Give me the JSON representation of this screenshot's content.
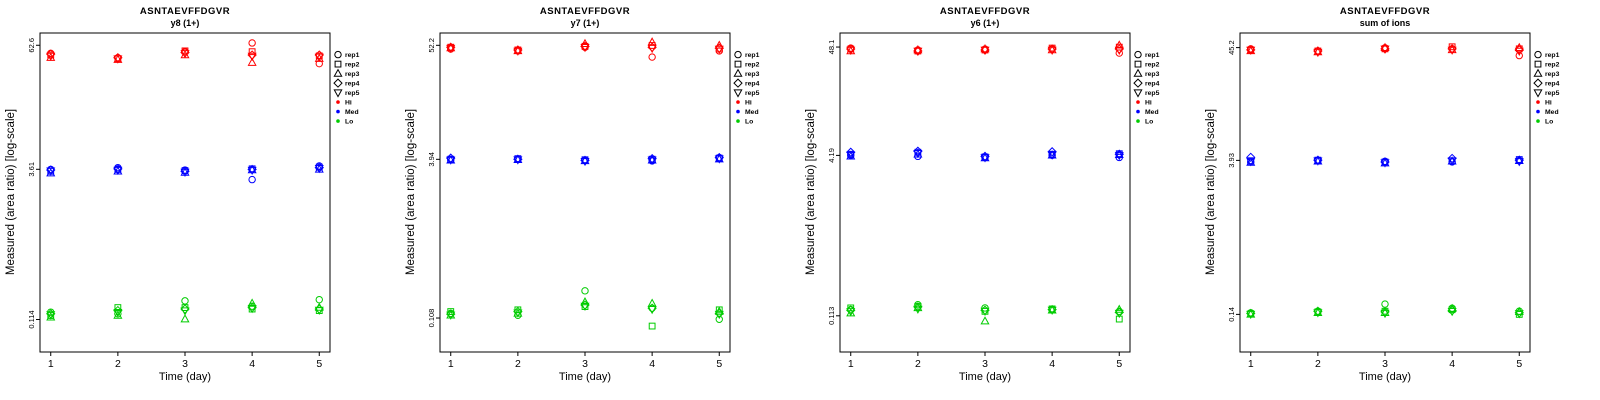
{
  "legend": {
    "rep_entries": [
      {
        "label": "rep1",
        "marker": "circle"
      },
      {
        "label": "rep2",
        "marker": "square"
      },
      {
        "label": "rep3",
        "marker": "triangle-up"
      },
      {
        "label": "rep4",
        "marker": "diamond"
      },
      {
        "label": "rep5",
        "marker": "triangle-down"
      }
    ],
    "level_entries": [
      {
        "label": "Hi",
        "color": "#FF0000"
      },
      {
        "label": "Med",
        "color": "#0000FF"
      },
      {
        "label": "Lo",
        "color": "#00CC00"
      }
    ]
  },
  "chart_data": [
    {
      "type": "scatter",
      "title": "ASNTAEVFFDGVR",
      "subtitle": "y8 (1+)",
      "xlabel": "Time (day)",
      "ylabel": "Measured (area ratio) [log-scale]",
      "x": [
        1,
        2,
        3,
        4,
        5
      ],
      "xlim": [
        0.84,
        5.16
      ],
      "ylim": [
        0.054,
        83
      ],
      "yscale": "log",
      "grid": false,
      "yticks": [
        {
          "label": "62.6",
          "value": 62.6
        },
        {
          "label": "3.61",
          "value": 3.61
        },
        {
          "label": "0.114",
          "value": 0.114
        }
      ],
      "groups": [
        {
          "name": "Hi",
          "color": "#FF0000",
          "reps": [
            {
              "name": "rep1",
              "marker": "circle",
              "values": [
                52,
                47,
                54,
                66,
                41
              ]
            },
            {
              "name": "rep2",
              "marker": "square",
              "values": [
                50,
                46,
                55,
                54,
                49
              ]
            },
            {
              "name": "rep3",
              "marker": "triangle-up",
              "values": [
                47,
                45,
                50,
                42,
                46
              ]
            },
            {
              "name": "rep4",
              "marker": "diamond",
              "values": [
                51,
                47,
                53,
                50,
                50
              ]
            },
            {
              "name": "rep5",
              "marker": "triangle-down",
              "values": [
                49,
                46,
                52,
                49,
                48
              ]
            }
          ]
        },
        {
          "name": "Med",
          "color": "#0000FF",
          "reps": [
            {
              "name": "rep1",
              "marker": "circle",
              "values": [
                3.6,
                3.75,
                3.55,
                2.85,
                3.9
              ]
            },
            {
              "name": "rep2",
              "marker": "square",
              "values": [
                3.45,
                3.6,
                3.5,
                3.65,
                3.8
              ]
            },
            {
              "name": "rep3",
              "marker": "triangle-up",
              "values": [
                3.3,
                3.45,
                3.35,
                3.55,
                3.6
              ]
            },
            {
              "name": "rep4",
              "marker": "diamond",
              "values": [
                3.55,
                3.65,
                3.45,
                3.6,
                3.75
              ]
            },
            {
              "name": "rep5",
              "marker": "triangle-down",
              "values": [
                3.5,
                3.55,
                3.4,
                3.55,
                3.7
              ]
            }
          ]
        },
        {
          "name": "Lo",
          "color": "#00CC00",
          "reps": [
            {
              "name": "rep1",
              "marker": "circle",
              "values": [
                0.135,
                0.13,
                0.175,
                0.155,
                0.18
              ]
            },
            {
              "name": "rep2",
              "marker": "square",
              "values": [
                0.125,
                0.15,
                0.15,
                0.145,
                0.14
              ]
            },
            {
              "name": "rep3",
              "marker": "triangle-up",
              "values": [
                0.12,
                0.125,
                0.115,
                0.165,
                0.15
              ]
            },
            {
              "name": "rep4",
              "marker": "diamond",
              "values": [
                0.13,
                0.14,
                0.145,
                0.15,
                0.145
              ]
            },
            {
              "name": "rep5",
              "marker": "triangle-down",
              "values": [
                0.128,
                0.135,
                0.14,
                0.148,
                0.142
              ]
            }
          ]
        }
      ]
    },
    {
      "type": "scatter",
      "title": "ASNTAEVFFDGVR",
      "subtitle": "y7 (1+)",
      "xlabel": "Time (day)",
      "ylabel": "Measured (area ratio) [log-scale]",
      "x": [
        1,
        2,
        3,
        4,
        5
      ],
      "xlim": [
        0.84,
        5.16
      ],
      "ylim": [
        0.05,
        69
      ],
      "yscale": "log",
      "grid": false,
      "yticks": [
        {
          "label": "52.2",
          "value": 52.2
        },
        {
          "label": "3.94",
          "value": 3.94
        },
        {
          "label": "0.108",
          "value": 0.108
        }
      ],
      "groups": [
        {
          "name": "Hi",
          "color": "#FF0000",
          "reps": [
            {
              "name": "rep1",
              "marker": "circle",
              "values": [
                48,
                46,
                50,
                40,
                46
              ]
            },
            {
              "name": "rep2",
              "marker": "square",
              "values": [
                50,
                47,
                51,
                52,
                48
              ]
            },
            {
              "name": "rep3",
              "marker": "triangle-up",
              "values": [
                49,
                46,
                54,
                56,
                52
              ]
            },
            {
              "name": "rep4",
              "marker": "diamond",
              "values": [
                50,
                47,
                51,
                50,
                49
              ]
            },
            {
              "name": "rep5",
              "marker": "triangle-down",
              "values": [
                49,
                46,
                50,
                49,
                48
              ]
            }
          ]
        },
        {
          "name": "Med",
          "color": "#0000FF",
          "reps": [
            {
              "name": "rep1",
              "marker": "circle",
              "values": [
                3.9,
                3.95,
                3.85,
                3.8,
                4.1
              ]
            },
            {
              "name": "rep2",
              "marker": "square",
              "values": [
                3.95,
                4.0,
                3.9,
                3.95,
                4.05
              ]
            },
            {
              "name": "rep3",
              "marker": "triangle-up",
              "values": [
                3.85,
                3.9,
                3.8,
                3.85,
                3.95
              ]
            },
            {
              "name": "rep4",
              "marker": "diamond",
              "values": [
                4.05,
                3.95,
                3.85,
                4.0,
                4.1
              ]
            },
            {
              "name": "rep5",
              "marker": "triangle-down",
              "values": [
                3.9,
                3.92,
                3.78,
                3.9,
                4.0
              ]
            }
          ]
        },
        {
          "name": "Lo",
          "color": "#00CC00",
          "reps": [
            {
              "name": "rep1",
              "marker": "circle",
              "values": [
                0.12,
                0.115,
                0.2,
                0.135,
                0.105
              ]
            },
            {
              "name": "rep2",
              "marker": "square",
              "values": [
                0.125,
                0.13,
                0.14,
                0.09,
                0.13
              ]
            },
            {
              "name": "rep3",
              "marker": "triangle-up",
              "values": [
                0.115,
                0.12,
                0.155,
                0.15,
                0.125
              ]
            },
            {
              "name": "rep4",
              "marker": "diamond",
              "values": [
                0.118,
                0.125,
                0.145,
                0.135,
                0.12
              ]
            },
            {
              "name": "rep5",
              "marker": "triangle-down",
              "values": [
                0.116,
                0.122,
                0.142,
                0.132,
                0.118
              ]
            }
          ]
        }
      ]
    },
    {
      "type": "scatter",
      "title": "ASNTAEVFFDGVR",
      "subtitle": "y6 (1+)",
      "xlabel": "Time (day)",
      "ylabel": "Measured (area ratio) [log-scale]",
      "x": [
        1,
        2,
        3,
        4,
        5
      ],
      "xlim": [
        0.84,
        5.16
      ],
      "ylim": [
        0.05,
        66
      ],
      "yscale": "log",
      "grid": false,
      "yticks": [
        {
          "label": "48.1",
          "value": 48.1
        },
        {
          "label": "4.19",
          "value": 4.19
        },
        {
          "label": "0.113",
          "value": 0.113
        }
      ],
      "groups": [
        {
          "name": "Hi",
          "color": "#FF0000",
          "reps": [
            {
              "name": "rep1",
              "marker": "circle",
              "values": [
                47,
                45,
                46,
                46,
                42
              ]
            },
            {
              "name": "rep2",
              "marker": "square",
              "values": [
                46,
                44,
                45,
                47,
                48
              ]
            },
            {
              "name": "rep3",
              "marker": "triangle-up",
              "values": [
                44,
                45,
                46,
                45,
                50
              ]
            },
            {
              "name": "rep4",
              "marker": "diamond",
              "values": [
                46,
                44,
                45,
                46,
                46
              ]
            },
            {
              "name": "rep5",
              "marker": "triangle-down",
              "values": [
                45,
                44,
                45,
                45,
                45
              ]
            }
          ]
        },
        {
          "name": "Med",
          "color": "#0000FF",
          "reps": [
            {
              "name": "rep1",
              "marker": "circle",
              "values": [
                4.2,
                4.1,
                4.0,
                4.2,
                4.0
              ]
            },
            {
              "name": "rep2",
              "marker": "square",
              "values": [
                4.3,
                4.5,
                4.05,
                4.3,
                4.35
              ]
            },
            {
              "name": "rep3",
              "marker": "triangle-up",
              "values": [
                4.1,
                4.3,
                3.95,
                4.2,
                4.25
              ]
            },
            {
              "name": "rep4",
              "marker": "diamond",
              "values": [
                4.5,
                4.6,
                4.1,
                4.55,
                4.3
              ]
            },
            {
              "name": "rep5",
              "marker": "triangle-down",
              "values": [
                4.25,
                4.4,
                4.0,
                4.25,
                4.2
              ]
            }
          ]
        },
        {
          "name": "Lo",
          "color": "#00CC00",
          "reps": [
            {
              "name": "rep1",
              "marker": "circle",
              "values": [
                0.13,
                0.145,
                0.135,
                0.13,
                0.125
              ]
            },
            {
              "name": "rep2",
              "marker": "square",
              "values": [
                0.135,
                0.14,
                0.125,
                0.132,
                0.105
              ]
            },
            {
              "name": "rep3",
              "marker": "triangle-up",
              "values": [
                0.12,
                0.135,
                0.1,
                0.128,
                0.13
              ]
            },
            {
              "name": "rep4",
              "marker": "diamond",
              "values": [
                0.128,
                0.138,
                0.128,
                0.13,
                0.122
              ]
            },
            {
              "name": "rep5",
              "marker": "triangle-down",
              "values": [
                0.125,
                0.132,
                0.126,
                0.129,
                0.12
              ]
            }
          ]
        }
      ]
    },
    {
      "type": "scatter",
      "title": "ASNTAEVFFDGVR",
      "subtitle": "sum of ions",
      "xlabel": "Time (day)",
      "ylabel": "Measured (area ratio) [log-scale]",
      "x": [
        1,
        2,
        3,
        4,
        5
      ],
      "xlim": [
        0.84,
        5.16
      ],
      "ylim": [
        0.062,
        62
      ],
      "yscale": "log",
      "grid": false,
      "yticks": [
        {
          "label": "45.2",
          "value": 45.2
        },
        {
          "label": "3.93",
          "value": 3.93
        },
        {
          "label": "0.14",
          "value": 0.14
        }
      ],
      "groups": [
        {
          "name": "Hi",
          "color": "#FF0000",
          "reps": [
            {
              "name": "rep1",
              "marker": "circle",
              "values": [
                44,
                42,
                45,
                44,
                38
              ]
            },
            {
              "name": "rep2",
              "marker": "square",
              "values": [
                43,
                42,
                44,
                46,
                44
              ]
            },
            {
              "name": "rep3",
              "marker": "triangle-up",
              "values": [
                42,
                41,
                45,
                43,
                45
              ]
            },
            {
              "name": "rep4",
              "marker": "diamond",
              "values": [
                43,
                42,
                44,
                44,
                43
              ]
            },
            {
              "name": "rep5",
              "marker": "triangle-down",
              "values": [
                43,
                41,
                44,
                43,
                42
              ]
            }
          ]
        },
        {
          "name": "Med",
          "color": "#0000FF",
          "reps": [
            {
              "name": "rep1",
              "marker": "circle",
              "values": [
                3.8,
                3.9,
                3.85,
                3.8,
                3.9
              ]
            },
            {
              "name": "rep2",
              "marker": "square",
              "values": [
                3.9,
                3.95,
                3.8,
                3.9,
                4.0
              ]
            },
            {
              "name": "rep3",
              "marker": "triangle-up",
              "values": [
                3.75,
                3.85,
                3.7,
                3.85,
                3.9
              ]
            },
            {
              "name": "rep4",
              "marker": "diamond",
              "values": [
                4.2,
                3.95,
                3.8,
                4.1,
                3.95
              ]
            },
            {
              "name": "rep5",
              "marker": "triangle-down",
              "values": [
                3.85,
                3.9,
                3.75,
                3.9,
                3.85
              ]
            }
          ]
        },
        {
          "name": "Lo",
          "color": "#00CC00",
          "reps": [
            {
              "name": "rep1",
              "marker": "circle",
              "values": [
                0.145,
                0.15,
                0.175,
                0.16,
                0.15
              ]
            },
            {
              "name": "rep2",
              "marker": "square",
              "values": [
                0.142,
                0.148,
                0.15,
                0.155,
                0.14
              ]
            },
            {
              "name": "rep3",
              "marker": "triangle-up",
              "values": [
                0.14,
                0.145,
                0.145,
                0.158,
                0.148
              ]
            },
            {
              "name": "rep4",
              "marker": "diamond",
              "values": [
                0.143,
                0.15,
                0.148,
                0.152,
                0.145
              ]
            },
            {
              "name": "rep5",
              "marker": "triangle-down",
              "values": [
                0.141,
                0.146,
                0.144,
                0.15,
                0.143
              ]
            }
          ]
        }
      ]
    }
  ]
}
